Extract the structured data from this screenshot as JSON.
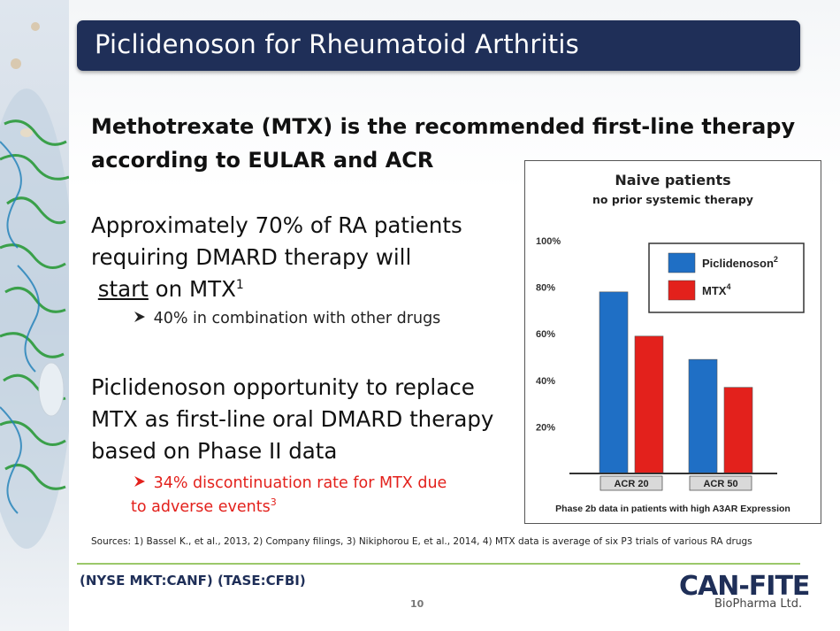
{
  "title": "Piclidenoson for Rheumatoid Arthritis",
  "heading_line1": "Methotrexate (MTX) is the recommended first-line therapy",
  "heading_line2": "according to EULAR and ACR",
  "para1": {
    "line1": "Approximately 70% of RA patients",
    "line2": "requiring  DMARD therapy will",
    "line3_underlined": "start",
    "line3_rest": " on MTX",
    "line3_sup": "1"
  },
  "bullet1": "40% in combination with other drugs",
  "para2": {
    "line1": "Piclidenoson opportunity to replace",
    "line2": "MTX as first-line  oral DMARD therapy",
    "line3": "based on Phase II data"
  },
  "bullet2": {
    "line1": "34% discontinuation rate for MTX due",
    "line2": "to adverse events",
    "sup": "3"
  },
  "sources": "Sources: 1) Bassel K., et al., 2013, 2) Company filings, 3) Nikiphorou E, et al., 2014, 4) MTX data is average of six P3 trials of various RA drugs",
  "ticker": "(NYSE MKT:CANF)  (TASE:CFBI)",
  "page_number": "10",
  "logo": {
    "main": "CAN-FITE",
    "sub": "BioPharma Ltd."
  },
  "colors": {
    "title_bg": "#1f2f58",
    "piclidenoson": "#1f6fc5",
    "mtx": "#e3211c",
    "bullet_red": "#e3211c",
    "footer_line": "#9bc86a"
  },
  "icons": {
    "bullet": "arrow-bullet-icon"
  },
  "chart_data": {
    "type": "bar",
    "title": "Naive patients",
    "subtitle": "no prior systemic therapy",
    "categories": [
      "ACR 20",
      "ACR 50"
    ],
    "series": [
      {
        "name": "Piclidenoson",
        "sup": "2",
        "color": "#1f6fc5",
        "values": [
          78,
          49
        ]
      },
      {
        "name": "MTX",
        "sup": "4",
        "color": "#e3211c",
        "values": [
          59,
          37
        ]
      }
    ],
    "yticks": [
      "20%",
      "40%",
      "60%",
      "80%",
      "100%"
    ],
    "ylim": [
      0,
      100
    ],
    "caption": "Phase 2b data in patients with high A3AR Expression",
    "legend_position": "top-right"
  }
}
